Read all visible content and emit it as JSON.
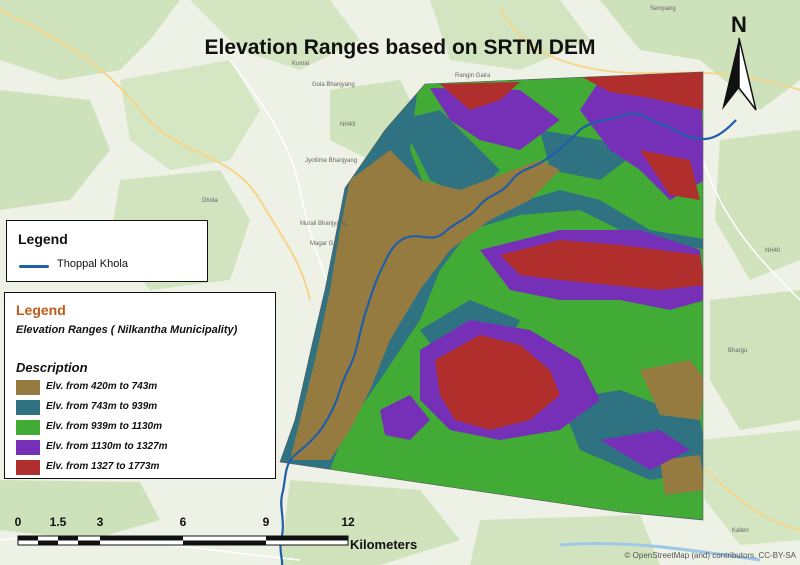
{
  "map": {
    "title": "Elevation Ranges based on SRTM DEM",
    "north_label": "N",
    "river_legend": {
      "title": "Legend",
      "item": "Thoppal Khola",
      "line_color": "#1f5ea8"
    },
    "elevation_legend": {
      "title": "Legend",
      "subtitle": "Elevation Ranges ( Nilkantha Municipality)",
      "description": "Description",
      "classes": [
        {
          "label": "Elv. from 420m to 743m",
          "color": "#957b3f"
        },
        {
          "label": "Elv. from 743m to 939m",
          "color": "#2f7383"
        },
        {
          "label": "Elv. from 939m to 1130m",
          "color": "#41ab36"
        },
        {
          "label": "Elv. from 1130m to 1327m",
          "color": "#7630b7"
        },
        {
          "label": "Elv. from 1327 to 1773m",
          "color": "#b02e2b"
        }
      ]
    },
    "scale_bar": {
      "ticks": [
        "0",
        "1.5",
        "3",
        "6",
        "9",
        "12"
      ],
      "units": "Kilometers"
    },
    "attribution": "© OpenStreetMap (and) contributors, CC-BY-SA",
    "basemap_places": [
      "Sempang",
      "Kumai",
      "Rangin Gaira",
      "Gola Bhanjyang",
      "NH43",
      "Jyotlime Bhanjyang",
      "Dhola",
      "Murali Bhanjyang",
      "Magar Gau",
      "Kalleri",
      "NH40",
      "Bhargu"
    ]
  }
}
